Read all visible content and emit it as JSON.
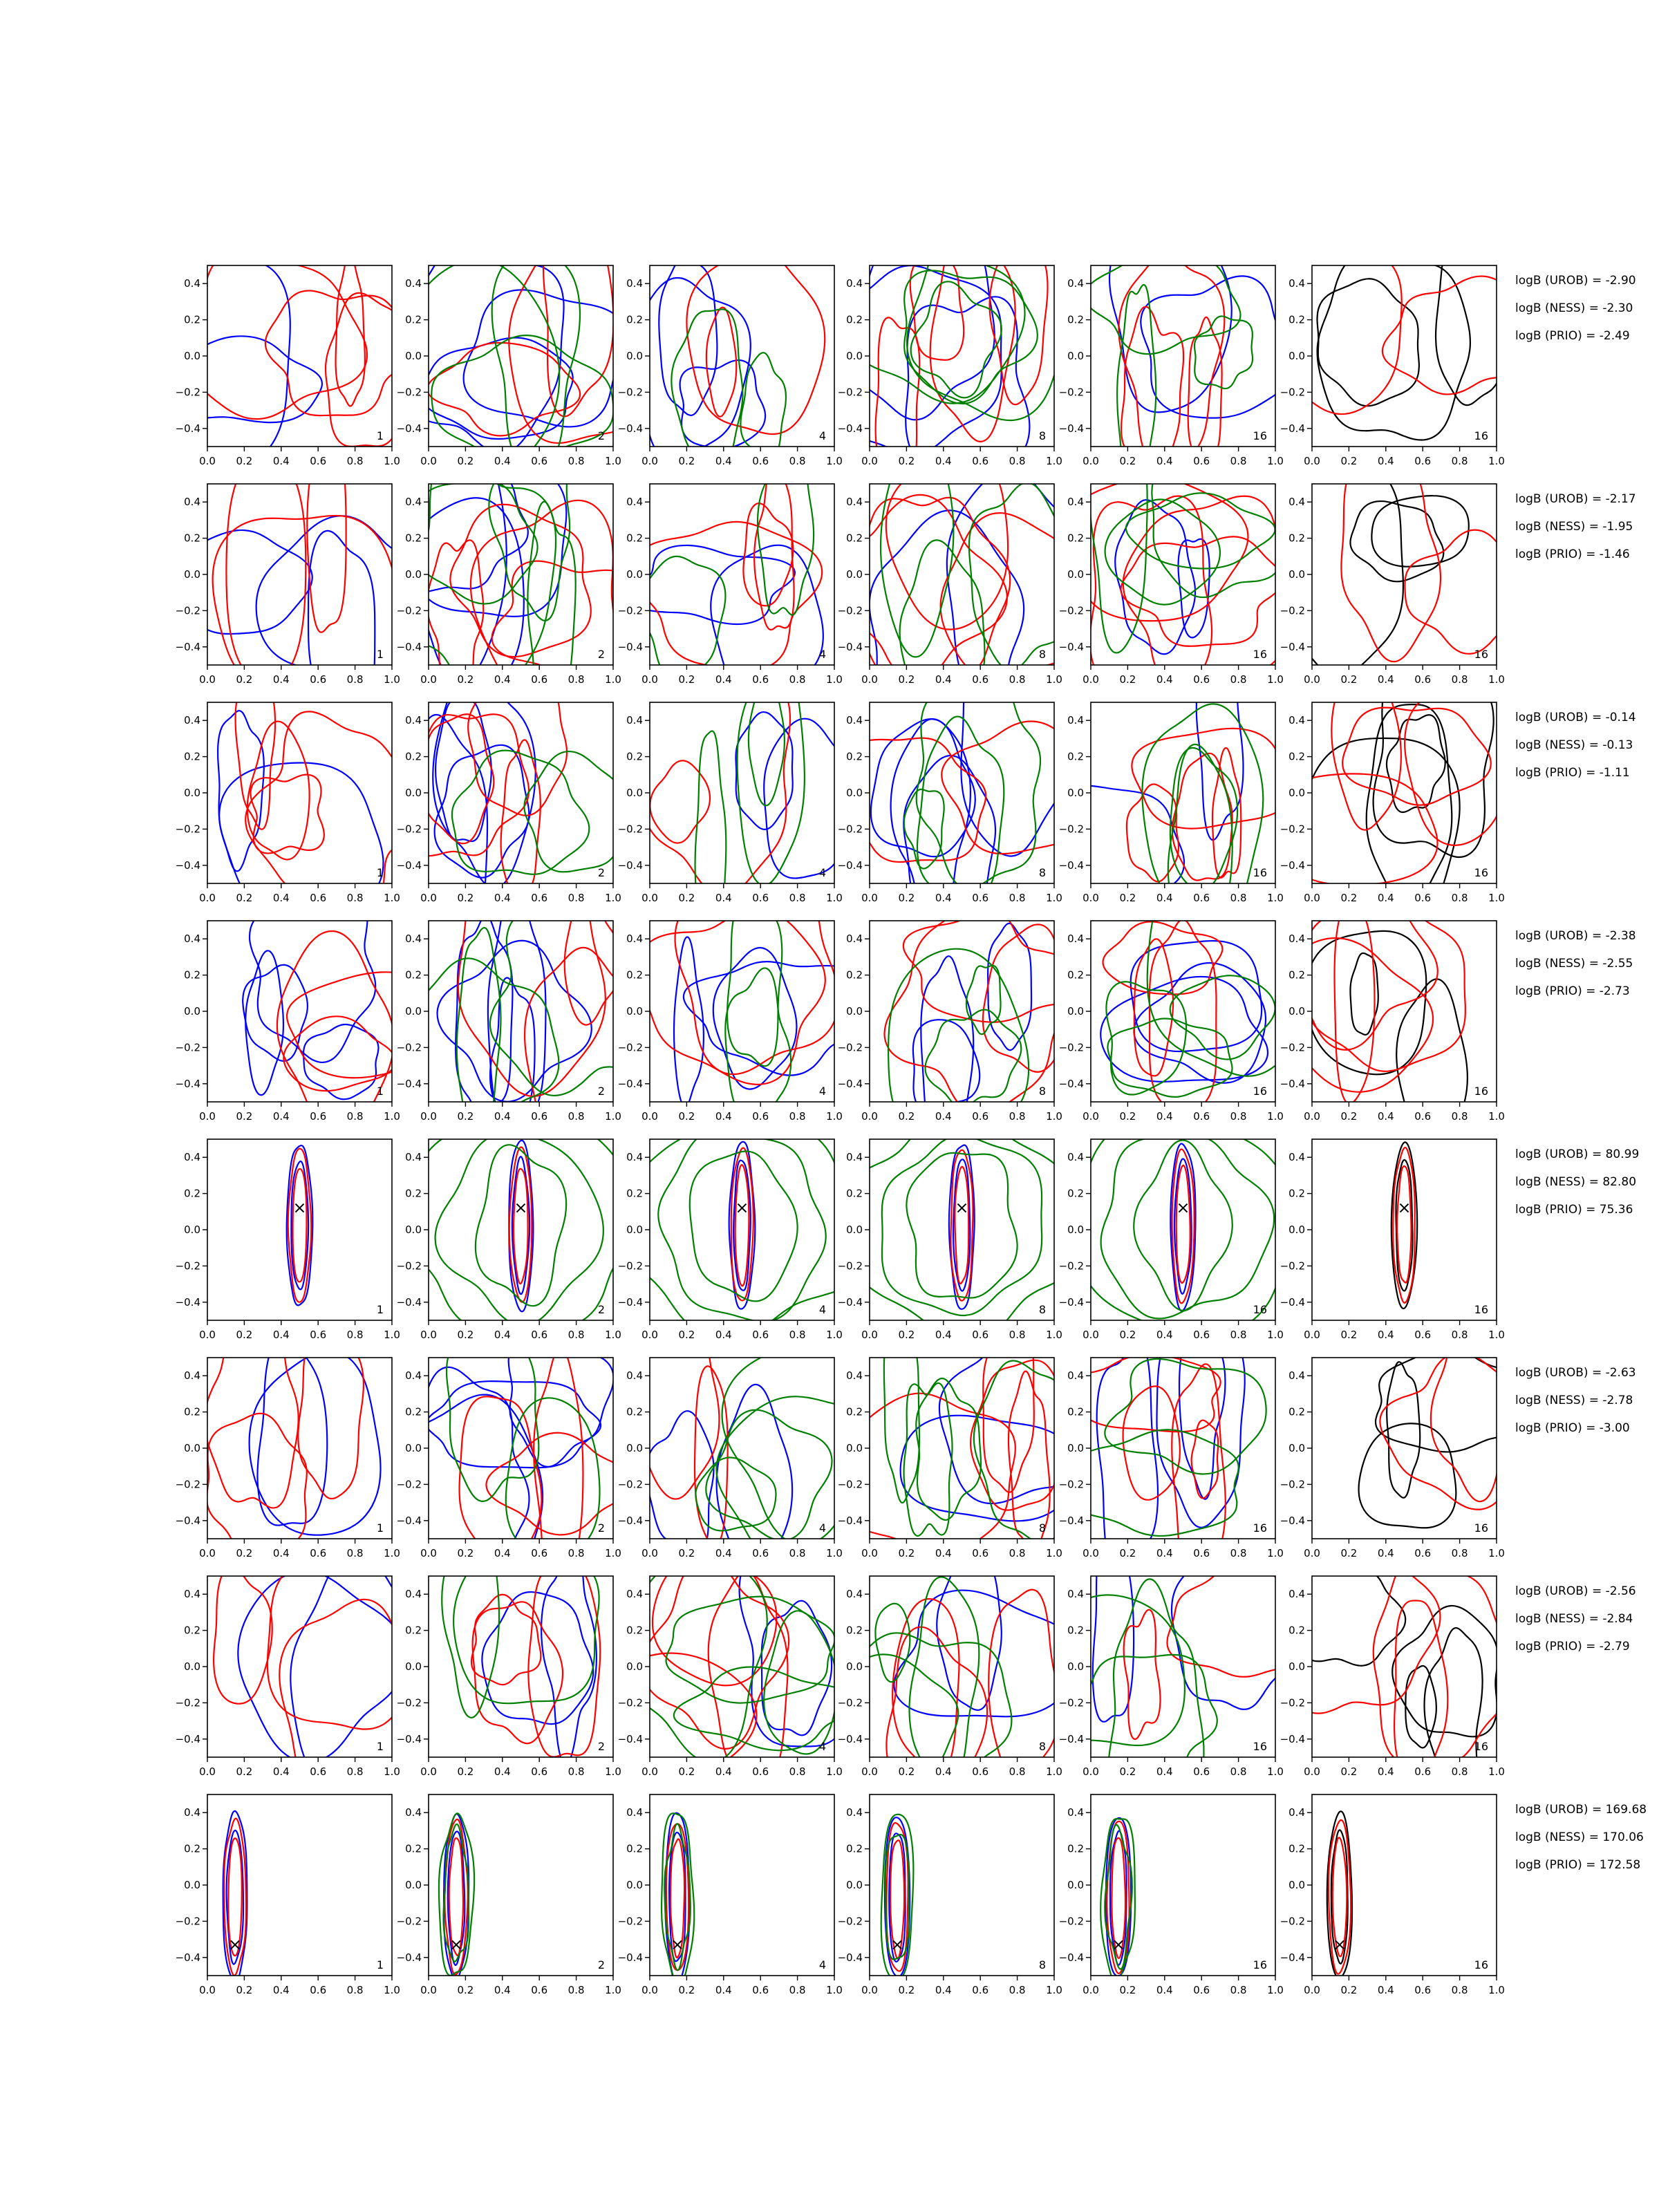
{
  "colors": {
    "UROB": "#0000ff",
    "NESS": "#ff0000",
    "PRIO": "#008000",
    "final": "#000000",
    "marker": "#000000"
  },
  "chart_data": {
    "type": "contour",
    "grid": {
      "rows": 8,
      "cols": 6
    },
    "xlim": [
      0.0,
      1.0
    ],
    "ylim": [
      -0.5,
      0.5
    ],
    "xticks": [
      "0.0",
      "0.2",
      "0.4",
      "0.6",
      "0.8",
      "1.0"
    ],
    "yticks": [
      "0.4",
      "0.2",
      "0.0",
      "−0.2",
      "−0.4"
    ],
    "panel_labels": [
      "1",
      "2",
      "4",
      "8",
      "16",
      "16"
    ],
    "series_colors": [
      "blue",
      "red",
      "green",
      "black"
    ],
    "rows": [
      {
        "logB": [
          "logB (UROB) = -2.90",
          "logB (NESS) = -2.30",
          "logB (PRIO) = -2.49"
        ],
        "localized": false,
        "target": null
      },
      {
        "logB": [
          "logB (UROB) = -2.17",
          "logB (NESS) = -1.95",
          "logB (PRIO) = -1.46"
        ],
        "localized": false,
        "target": null
      },
      {
        "logB": [
          "logB (UROB) = -0.14",
          "logB (NESS) = -0.13",
          "logB (PRIO) = -1.11"
        ],
        "localized": false,
        "target": null
      },
      {
        "logB": [
          "logB (UROB) = -2.38",
          "logB (NESS) = -2.55",
          "logB (PRIO) = -2.73"
        ],
        "localized": false,
        "target": null
      },
      {
        "logB": [
          "logB (UROB) = 80.99",
          "logB (NESS) = 82.80",
          "logB (PRIO) = 75.36"
        ],
        "localized": true,
        "target": [
          0.5,
          0.12
        ]
      },
      {
        "logB": [
          "logB (UROB) = -2.63",
          "logB (NESS) = -2.78",
          "logB (PRIO) = -3.00"
        ],
        "localized": false,
        "target": null
      },
      {
        "logB": [
          "logB (UROB) = -2.56",
          "logB (NESS) = -2.84",
          "logB (PRIO) = -2.79"
        ],
        "localized": false,
        "target": null
      },
      {
        "logB": [
          "logB (UROB) = 169.68",
          "logB (NESS) = 170.06",
          "logB (PRIO) = 172.58"
        ],
        "localized": true,
        "target": [
          0.15,
          -0.33
        ]
      }
    ]
  }
}
